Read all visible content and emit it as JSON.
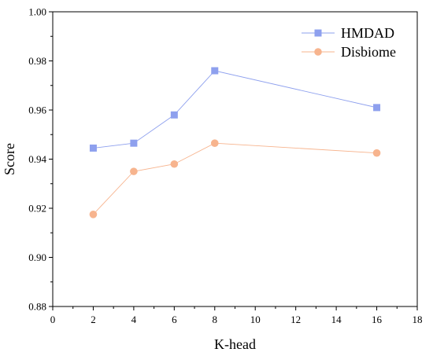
{
  "chart_data": {
    "type": "line",
    "xlabel": "K-head",
    "ylabel": "Score",
    "xlim": [
      0,
      18
    ],
    "ylim": [
      0.88,
      1.0
    ],
    "x_ticks": [
      "0",
      "2",
      "4",
      "6",
      "8",
      "10",
      "12",
      "14",
      "16",
      "18"
    ],
    "y_ticks": [
      "0.88",
      "0.90",
      "0.92",
      "0.94",
      "0.96",
      "0.98",
      "1.00"
    ],
    "grid": false,
    "legend_position": "top-right",
    "x": [
      2,
      4,
      6,
      8,
      16
    ],
    "series": [
      {
        "name": "HMDAD",
        "values": [
          0.9445,
          0.9465,
          0.958,
          0.976,
          0.961
        ],
        "color": "#8ea0ee",
        "marker": "square"
      },
      {
        "name": "Disbiome",
        "values": [
          0.9175,
          0.935,
          0.938,
          0.9465,
          0.9425
        ],
        "color": "#f7b48e",
        "marker": "circle"
      }
    ]
  }
}
